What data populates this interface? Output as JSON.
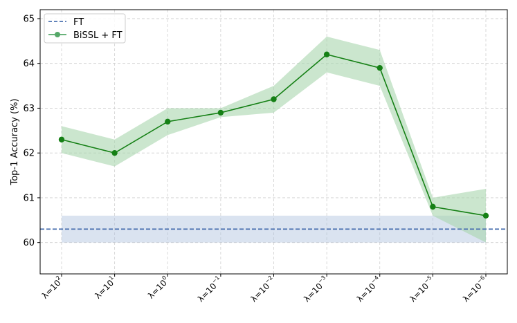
{
  "chart_data": {
    "type": "line",
    "title": "",
    "xlabel": "",
    "ylabel": "Top-1 Accuracy (%)",
    "ylim": [
      59.3,
      65.2
    ],
    "yticks": [
      60,
      61,
      62,
      63,
      64,
      65
    ],
    "categories": [
      {
        "base": "λ=10",
        "exp": "2"
      },
      {
        "base": "λ=10",
        "exp": "1"
      },
      {
        "base": "λ=10",
        "exp": "0"
      },
      {
        "base": "λ=10",
        "exp": "−1"
      },
      {
        "base": "λ=10",
        "exp": "−2"
      },
      {
        "base": "λ=10",
        "exp": "−3"
      },
      {
        "base": "λ=10",
        "exp": "−4"
      },
      {
        "base": "λ=10",
        "exp": "−5"
      },
      {
        "base": "λ=10",
        "exp": "−6"
      }
    ],
    "grid": true,
    "legend_position": "top-left",
    "series": [
      {
        "name": "FT",
        "style": "dashed",
        "color": "#4c72b0",
        "value": 60.3,
        "band": [
          60.0,
          60.6
        ],
        "band_color": "#aec0dd"
      },
      {
        "name": "BiSSL + FT",
        "style": "solid-marker",
        "color": "#158015",
        "legend_color": "#55a868",
        "values": [
          62.3,
          62.0,
          62.7,
          62.9,
          63.2,
          64.2,
          63.9,
          60.8,
          60.6
        ],
        "lower": [
          62.0,
          61.7,
          62.4,
          62.8,
          62.9,
          63.8,
          63.5,
          60.6,
          60.0
        ],
        "upper": [
          62.6,
          62.3,
          63.0,
          63.0,
          63.5,
          64.6,
          64.3,
          61.0,
          61.2
        ],
        "band_color": "#a8d5ae"
      }
    ]
  }
}
